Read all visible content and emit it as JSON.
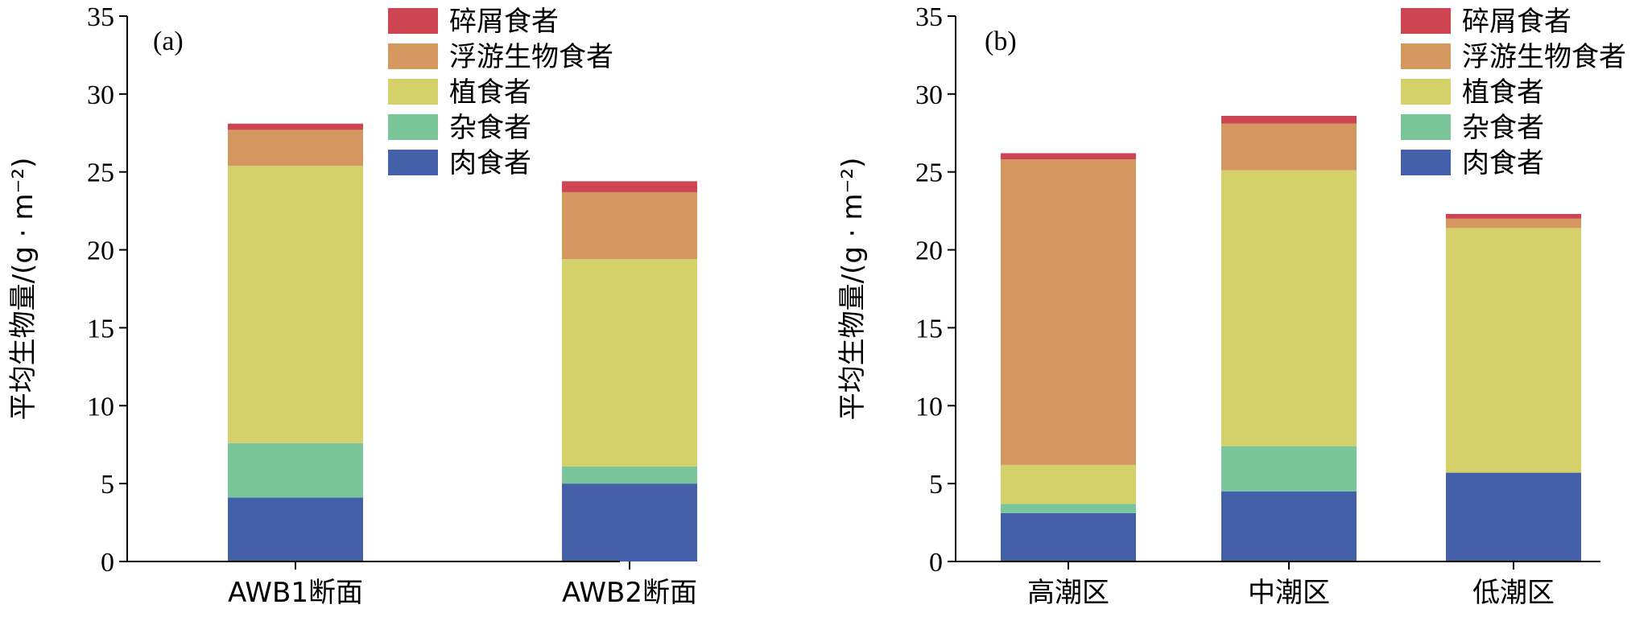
{
  "chart_data": [
    {
      "type": "bar",
      "stacked": true,
      "panel_label": "(a)",
      "ylabel": "平均生物量/(g · m⁻²)",
      "ylim": [
        0,
        35
      ],
      "yticks": [
        0,
        5,
        10,
        15,
        20,
        25,
        30,
        35
      ],
      "categories": [
        "AWB1断面",
        "AWB2断面"
      ],
      "series": [
        {
          "name": "肉食者",
          "color": "#4460a8",
          "values": [
            4.1,
            5.0
          ]
        },
        {
          "name": "杂食者",
          "color": "#7bc59b",
          "values": [
            3.5,
            1.1
          ]
        },
        {
          "name": "植食者",
          "color": "#d4d06a",
          "values": [
            17.8,
            13.3
          ]
        },
        {
          "name": "浮游生物食者",
          "color": "#d4975f",
          "values": [
            2.3,
            4.3
          ]
        },
        {
          "name": "碎屑食者",
          "color": "#cc4550",
          "values": [
            0.4,
            0.7
          ]
        }
      ],
      "legend_order": [
        "碎屑食者",
        "浮游生物食者",
        "植食者",
        "杂食者",
        "肉食者"
      ],
      "legend_position": "top-right"
    },
    {
      "type": "bar",
      "stacked": true,
      "panel_label": "(b)",
      "ylabel": "平均生物量/(g · m⁻²)",
      "ylim": [
        0,
        35
      ],
      "yticks": [
        0,
        5,
        10,
        15,
        20,
        25,
        30,
        35
      ],
      "categories": [
        "高潮区",
        "中潮区",
        "低潮区"
      ],
      "series": [
        {
          "name": "肉食者",
          "color": "#4460a8",
          "values": [
            3.1,
            4.5,
            5.7
          ]
        },
        {
          "name": "杂食者",
          "color": "#7bc59b",
          "values": [
            0.6,
            2.9,
            0.0
          ]
        },
        {
          "name": "植食者",
          "color": "#d4d06a",
          "values": [
            2.5,
            17.7,
            15.7
          ]
        },
        {
          "name": "浮游生物食者",
          "color": "#d4975f",
          "values": [
            19.6,
            3.0,
            0.6
          ]
        },
        {
          "name": "碎屑食者",
          "color": "#cc4550",
          "values": [
            0.4,
            0.5,
            0.3
          ]
        }
      ],
      "legend_order": [
        "碎屑食者",
        "浮游生物食者",
        "植食者",
        "杂食者",
        "肉食者"
      ],
      "legend_position": "top-right"
    }
  ]
}
